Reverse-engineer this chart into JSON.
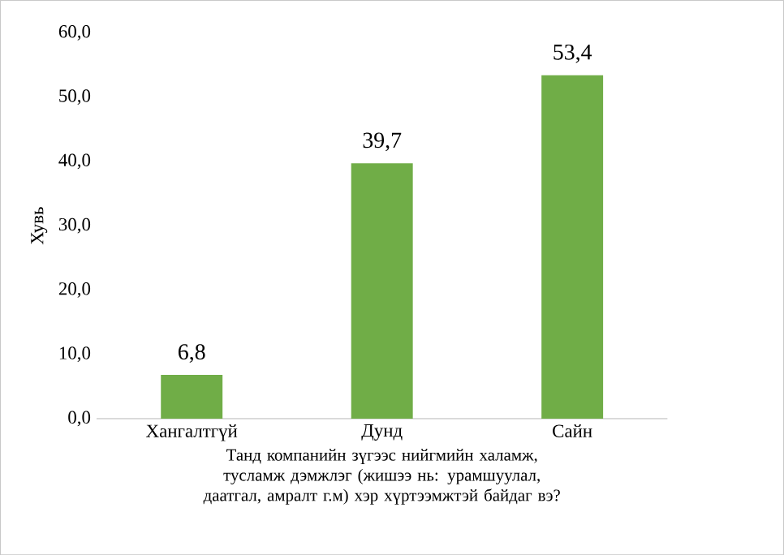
{
  "chart_data": {
    "type": "bar",
    "xlabel": "Танд компанийн зүгээс нийгмийн халамж, тусламж дэмжлэг (жишээ нь: урамшуулал, даатгал, амралт г.м) хэр хүртээмжтэй байдаг вэ?",
    "ylabel": "Хувь",
    "categories": [
      "Хангалтгүй",
      "Дунд",
      "Сайн"
    ],
    "values": [
      6.8,
      39.7,
      53.4
    ],
    "value_labels": [
      "6,8",
      "39,7",
      "53,4"
    ],
    "color": "#70ad47",
    "ylim": [
      0,
      60
    ],
    "yticks": [
      {
        "value": 0,
        "label": "0,0"
      },
      {
        "value": 10,
        "label": "10,0"
      },
      {
        "value": 20,
        "label": "20,0"
      },
      {
        "value": 30,
        "label": "30,0"
      },
      {
        "value": 40,
        "label": "40,0"
      },
      {
        "value": 50,
        "label": "50,0"
      },
      {
        "value": 60,
        "label": "60,0"
      }
    ],
    "grid": false
  }
}
